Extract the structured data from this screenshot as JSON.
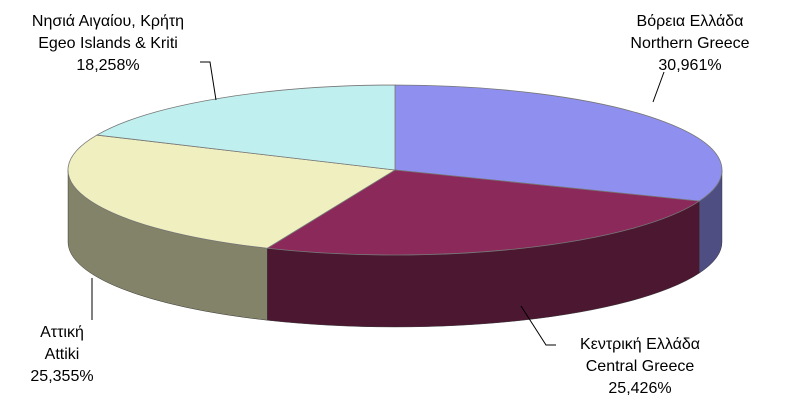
{
  "chart_data": {
    "type": "pie3d",
    "categories": [
      "Βόρεια Ελλάδα",
      "Κεντρική Ελλάδα",
      "Αττική",
      "Νησιά Αιγαίου, Κρήτη"
    ],
    "categories_en": [
      "Northern Greece",
      "Central Greece",
      "Attiki",
      "Egeo Islands & Kriti"
    ],
    "values": [
      30.961,
      25.426,
      25.355,
      18.258
    ],
    "value_labels": [
      "30,961%",
      "25,426%",
      "25,355%",
      "18,258%"
    ],
    "colors": [
      "#8f8fef",
      "#8b2a5a",
      "#efefbf",
      "#bfefef"
    ]
  }
}
